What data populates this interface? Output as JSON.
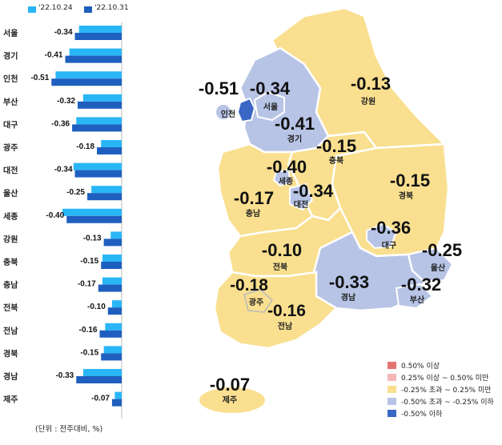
{
  "legend_top": {
    "series1_label": "'22.10.24",
    "series2_label": "'22.10.31"
  },
  "colors": {
    "series1": "#29b6f6",
    "series2": "#1f5fbf",
    "range_high": "#e57373",
    "range_midhigh": "#f2b8b8",
    "range_neutral": "#f9df8f",
    "range_midlow": "#b7c4e6",
    "range_low": "#3a66c4"
  },
  "unit_note": "(단위 : 전주대비, %)",
  "map_legend": [
    {
      "label": "0.50% 이상",
      "color_key": "range_high"
    },
    {
      "label": "0.25% 이상 ~ 0.50% 미만",
      "color_key": "range_midhigh"
    },
    {
      "label": "-0.25% 초과 ~ 0.25% 미만",
      "color_key": "range_neutral"
    },
    {
      "label": "-0.50% 초과 ~ -0.25% 이하",
      "color_key": "range_midlow"
    },
    {
      "label": "-0.50% 이하",
      "color_key": "range_low"
    }
  ],
  "chart_data": [
    {
      "type": "bar",
      "orientation": "horizontal",
      "categories": [
        "서울",
        "경기",
        "인천",
        "부산",
        "대구",
        "광주",
        "대전",
        "울산",
        "세종",
        "강원",
        "충북",
        "충남",
        "전북",
        "전남",
        "경북",
        "경남",
        "제주"
      ],
      "series": [
        {
          "name": "'22.10.24",
          "values": [
            -0.31,
            -0.38,
            -0.48,
            -0.28,
            -0.33,
            -0.15,
            -0.35,
            -0.22,
            -0.43,
            -0.08,
            -0.14,
            -0.14,
            -0.07,
            -0.12,
            -0.13,
            -0.28,
            -0.05
          ]
        },
        {
          "name": "'22.10.31",
          "values": [
            -0.34,
            -0.41,
            -0.51,
            -0.32,
            -0.36,
            -0.18,
            -0.34,
            -0.25,
            -0.4,
            -0.13,
            -0.15,
            -0.17,
            -0.1,
            -0.16,
            -0.15,
            -0.33,
            -0.07
          ]
        }
      ],
      "data_labels": [
        "-0.34",
        "-0.41",
        "-0.51",
        "-0.32",
        "-0.36",
        "-0.18",
        "-0.34",
        "-0.25",
        "-0.40",
        "-0.13",
        "-0.15",
        "-0.17",
        "-0.10",
        "-0.16",
        "-0.15",
        "-0.33",
        "-0.07"
      ],
      "xlim": [
        -0.55,
        0
      ]
    },
    {
      "type": "map",
      "regions": [
        {
          "name": "인천",
          "value": "-0.51",
          "class": "range_low"
        },
        {
          "name": "서울",
          "value": "-0.34",
          "class": "range_midlow"
        },
        {
          "name": "경기",
          "value": "-0.41",
          "class": "range_midlow"
        },
        {
          "name": "강원",
          "value": "-0.13",
          "class": "range_neutral"
        },
        {
          "name": "충북",
          "value": "-0.15",
          "class": "range_neutral"
        },
        {
          "name": "세종",
          "value": "-0.40",
          "class": "range_midlow"
        },
        {
          "name": "대전",
          "value": "-0.34",
          "class": "range_midlow"
        },
        {
          "name": "충남",
          "value": "-0.17",
          "class": "range_neutral"
        },
        {
          "name": "경북",
          "value": "-0.15",
          "class": "range_neutral"
        },
        {
          "name": "대구",
          "value": "-0.36",
          "class": "range_midlow"
        },
        {
          "name": "울산",
          "value": "-0.25",
          "class": "range_neutral"
        },
        {
          "name": "전북",
          "value": "-0.10",
          "class": "range_neutral"
        },
        {
          "name": "광주",
          "value": "-0.18",
          "class": "range_neutral"
        },
        {
          "name": "전남",
          "value": "-0.16",
          "class": "range_neutral"
        },
        {
          "name": "경남",
          "value": "-0.33",
          "class": "range_midlow"
        },
        {
          "name": "부산",
          "value": "-0.32",
          "class": "range_midlow"
        },
        {
          "name": "제주",
          "value": "-0.07",
          "class": "range_neutral"
        }
      ]
    }
  ]
}
